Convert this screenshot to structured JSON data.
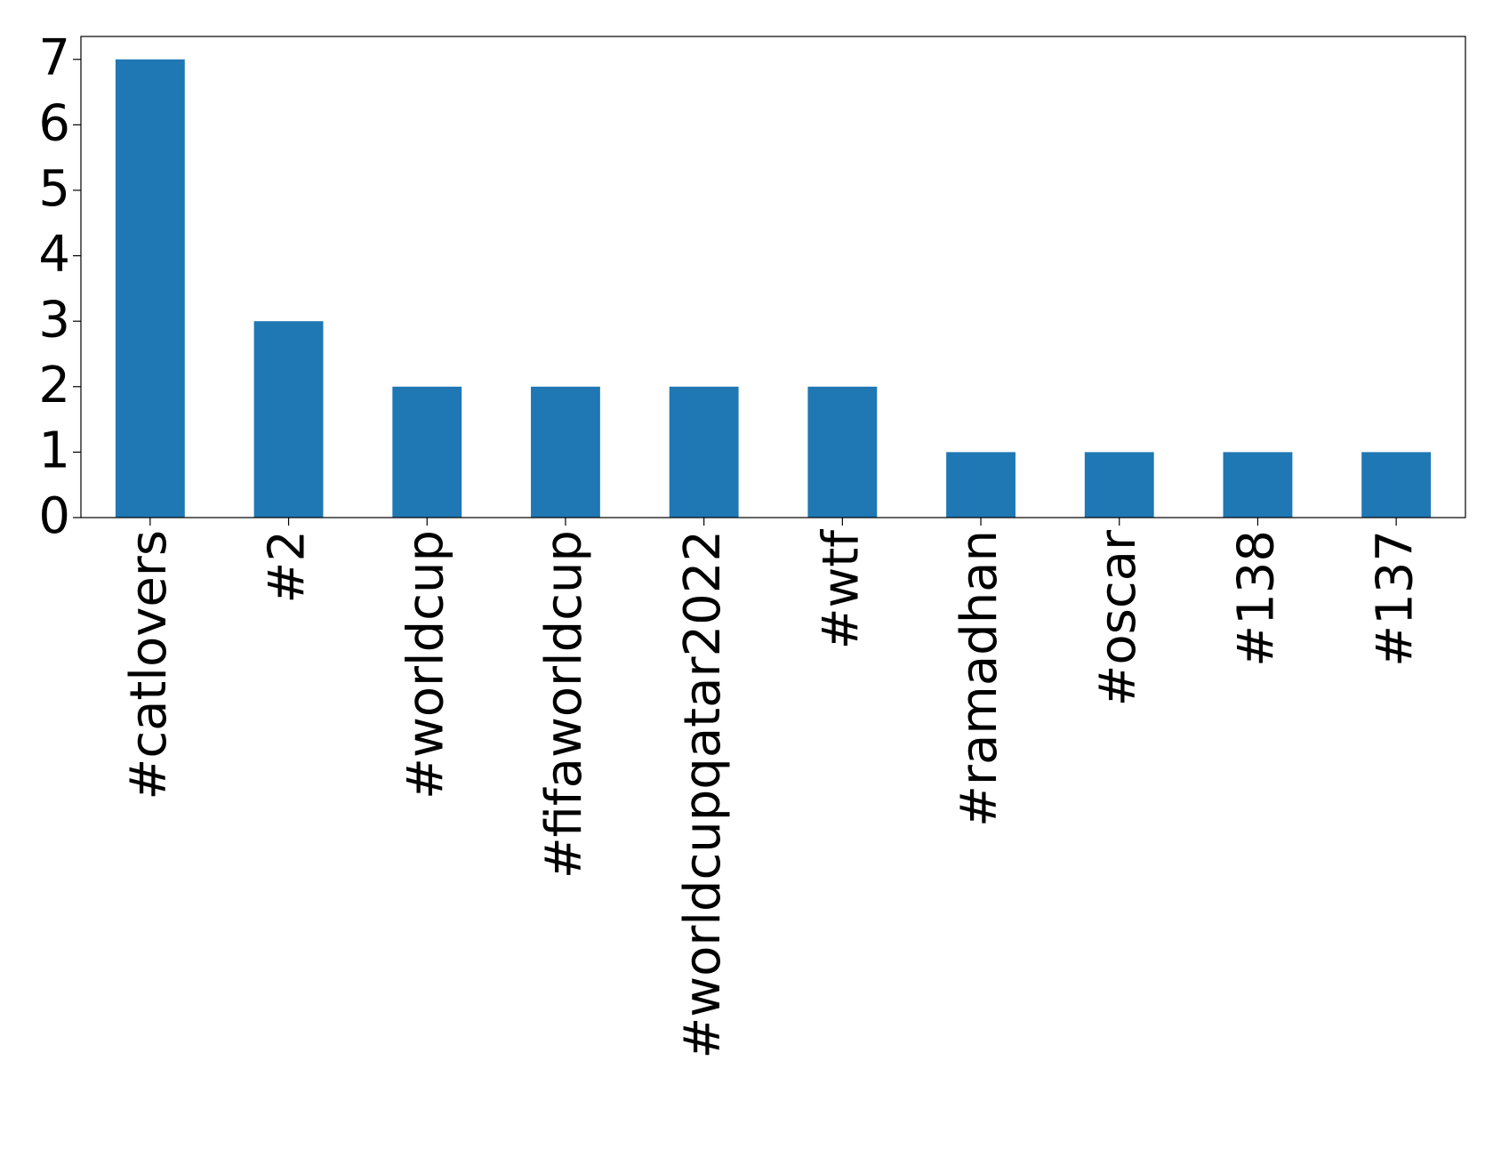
{
  "chart_data": {
    "type": "bar",
    "categories": [
      "#catlovers",
      "#2",
      "#worldcup",
      "#fifaworldcup",
      "#worldcupqatar2022",
      "#wtf",
      "#ramadhan",
      "#oscar",
      "#138",
      "#137"
    ],
    "values": [
      7,
      3,
      2,
      2,
      2,
      2,
      1,
      1,
      1,
      1
    ],
    "color": "#1f77b4",
    "ylim": [
      0,
      7.35
    ],
    "yticks": [
      0,
      1,
      2,
      3,
      4,
      5,
      6,
      7
    ],
    "grid": false
  }
}
